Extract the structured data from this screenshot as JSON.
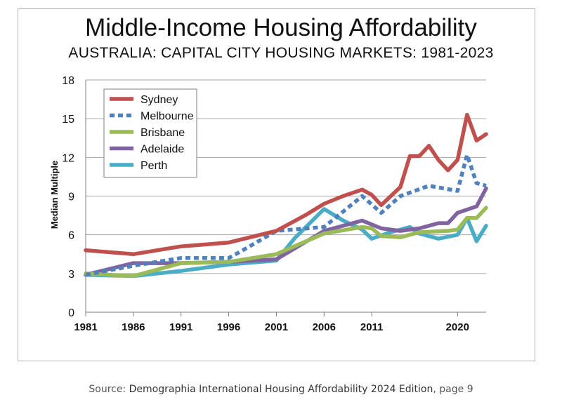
{
  "chart_data": {
    "type": "line",
    "title": "Middle-Income Housing Affordability",
    "subtitle": "AUSTRALIA: CAPITAL CITY HOUSING MARKETS: 1981-2023",
    "xlabel": "",
    "ylabel": "Median Multiple",
    "ylim": [
      0,
      18
    ],
    "xlim": [
      1981,
      2023
    ],
    "yticks": [
      0,
      3,
      6,
      9,
      12,
      15,
      18
    ],
    "xticks": [
      1981,
      1986,
      1991,
      1996,
      2001,
      2006,
      2011,
      2020
    ],
    "grid": "horizontal",
    "legend_position": "top-left",
    "series": [
      {
        "name": "Sydney",
        "color": "#c0504d",
        "style": "solid",
        "points": [
          [
            1981,
            4.8
          ],
          [
            1986,
            4.5
          ],
          [
            1991,
            5.1
          ],
          [
            1996,
            5.4
          ],
          [
            2001,
            6.3
          ],
          [
            2004,
            7.5
          ],
          [
            2006,
            8.4
          ],
          [
            2008,
            9.0
          ],
          [
            2010,
            9.5
          ],
          [
            2011,
            9.1
          ],
          [
            2012,
            8.3
          ],
          [
            2014,
            9.7
          ],
          [
            2015,
            12.1
          ],
          [
            2016,
            12.1
          ],
          [
            2017,
            12.9
          ],
          [
            2018,
            11.8
          ],
          [
            2019,
            11.0
          ],
          [
            2020,
            11.8
          ],
          [
            2021,
            15.3
          ],
          [
            2022,
            13.3
          ],
          [
            2023,
            13.8
          ]
        ]
      },
      {
        "name": "Melbourne",
        "color": "#4f81bd",
        "style": "dashed",
        "points": [
          [
            1981,
            2.9
          ],
          [
            1986,
            3.6
          ],
          [
            1991,
            4.2
          ],
          [
            1996,
            4.2
          ],
          [
            1997,
            4.6
          ],
          [
            2001,
            6.3
          ],
          [
            2006,
            6.6
          ],
          [
            2008,
            7.8
          ],
          [
            2010,
            9.0
          ],
          [
            2012,
            7.7
          ],
          [
            2014,
            9.0
          ],
          [
            2017,
            9.8
          ],
          [
            2020,
            9.4
          ],
          [
            2021,
            12.2
          ],
          [
            2022,
            10.0
          ],
          [
            2023,
            9.8
          ]
        ]
      },
      {
        "name": "Brisbane",
        "color": "#9bbb59",
        "style": "solid",
        "points": [
          [
            1981,
            3.0
          ],
          [
            1986,
            2.8
          ],
          [
            1991,
            3.8
          ],
          [
            1996,
            3.9
          ],
          [
            2001,
            4.5
          ],
          [
            2006,
            6.1
          ],
          [
            2010,
            6.6
          ],
          [
            2011,
            6.5
          ],
          [
            2012,
            5.9
          ],
          [
            2014,
            5.8
          ],
          [
            2016,
            6.2
          ],
          [
            2019,
            6.3
          ],
          [
            2020,
            6.4
          ],
          [
            2021,
            7.3
          ],
          [
            2022,
            7.3
          ],
          [
            2023,
            8.1
          ]
        ]
      },
      {
        "name": "Adelaide",
        "color": "#8064a2",
        "style": "solid",
        "points": [
          [
            1981,
            2.9
          ],
          [
            1986,
            3.8
          ],
          [
            1991,
            3.8
          ],
          [
            1996,
            3.9
          ],
          [
            2001,
            4.1
          ],
          [
            2006,
            6.3
          ],
          [
            2010,
            7.1
          ],
          [
            2012,
            6.5
          ],
          [
            2014,
            6.3
          ],
          [
            2016,
            6.5
          ],
          [
            2018,
            6.9
          ],
          [
            2019,
            6.9
          ],
          [
            2020,
            7.7
          ],
          [
            2022,
            8.2
          ],
          [
            2023,
            9.6
          ]
        ]
      },
      {
        "name": "Perth",
        "color": "#4bacc6",
        "style": "solid",
        "points": [
          [
            1981,
            2.9
          ],
          [
            1986,
            2.8
          ],
          [
            1991,
            3.2
          ],
          [
            1996,
            3.7
          ],
          [
            2001,
            4.0
          ],
          [
            2003,
            5.8
          ],
          [
            2006,
            8.0
          ],
          [
            2008,
            7.1
          ],
          [
            2010,
            6.4
          ],
          [
            2011,
            5.7
          ],
          [
            2013,
            6.2
          ],
          [
            2015,
            6.6
          ],
          [
            2016,
            6.1
          ],
          [
            2018,
            5.7
          ],
          [
            2020,
            6.0
          ],
          [
            2021,
            7.3
          ],
          [
            2022,
            5.5
          ],
          [
            2023,
            6.7
          ]
        ]
      }
    ]
  },
  "source": {
    "prefix": "Source: ",
    "title": "Demographia International Housing Affordability 2024 Edition",
    "suffix": ", page 9"
  }
}
